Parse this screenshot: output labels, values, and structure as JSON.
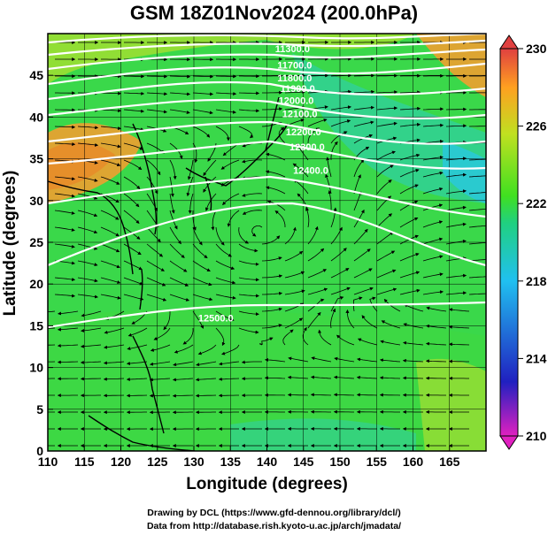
{
  "title": "GSM 18Z01Nov2024 (200.0hPa)",
  "xaxis": {
    "label": "Longitude (degrees)",
    "ticks": [
      110,
      115,
      120,
      125,
      130,
      135,
      140,
      145,
      150,
      155,
      160,
      165
    ],
    "range": [
      110,
      170
    ]
  },
  "yaxis": {
    "label": "Latitude  (degrees)",
    "ticks": [
      0,
      5,
      10,
      15,
      20,
      25,
      30,
      35,
      40,
      45
    ],
    "range": [
      0,
      50
    ]
  },
  "colorbar": {
    "ticks": [
      210,
      214,
      218,
      222,
      226,
      230
    ],
    "min": 210,
    "max": 230,
    "colors": [
      "#e020c0",
      "#2020c0",
      "#20c0f0",
      "#20d080",
      "#40e020",
      "#c0e020",
      "#ffa020",
      "#e04040"
    ]
  },
  "field": {
    "quantity": "temperature",
    "background": "#3ad84a"
  },
  "contours": [
    {
      "label": "11300.0",
      "lon": 143.5,
      "lat": 47.8
    },
    {
      "label": "11700.0",
      "lon": 143.8,
      "lat": 45.8
    },
    {
      "label": "11800.0",
      "lon": 143.8,
      "lat": 44.3
    },
    {
      "label": "11900.0",
      "lon": 144.2,
      "lat": 43.0
    },
    {
      "label": "12000.0",
      "lon": 144.0,
      "lat": 41.6
    },
    {
      "label": "12100.0",
      "lon": 144.5,
      "lat": 40.0
    },
    {
      "label": "12200.0",
      "lon": 145.0,
      "lat": 37.8
    },
    {
      "label": "12300.0",
      "lon": 145.5,
      "lat": 36.0
    },
    {
      "label": "12400.0",
      "lon": 146.0,
      "lat": 33.2
    },
    {
      "label": "12500.0",
      "lon": 133.0,
      "lat": 15.5
    }
  ],
  "credits": [
    "Drawing by DCL (https://www.gfd-dennou.org/library/dcl/)",
    "Data from http://database.rish.kyoto-u.ac.jp/arch/jmadata/"
  ]
}
